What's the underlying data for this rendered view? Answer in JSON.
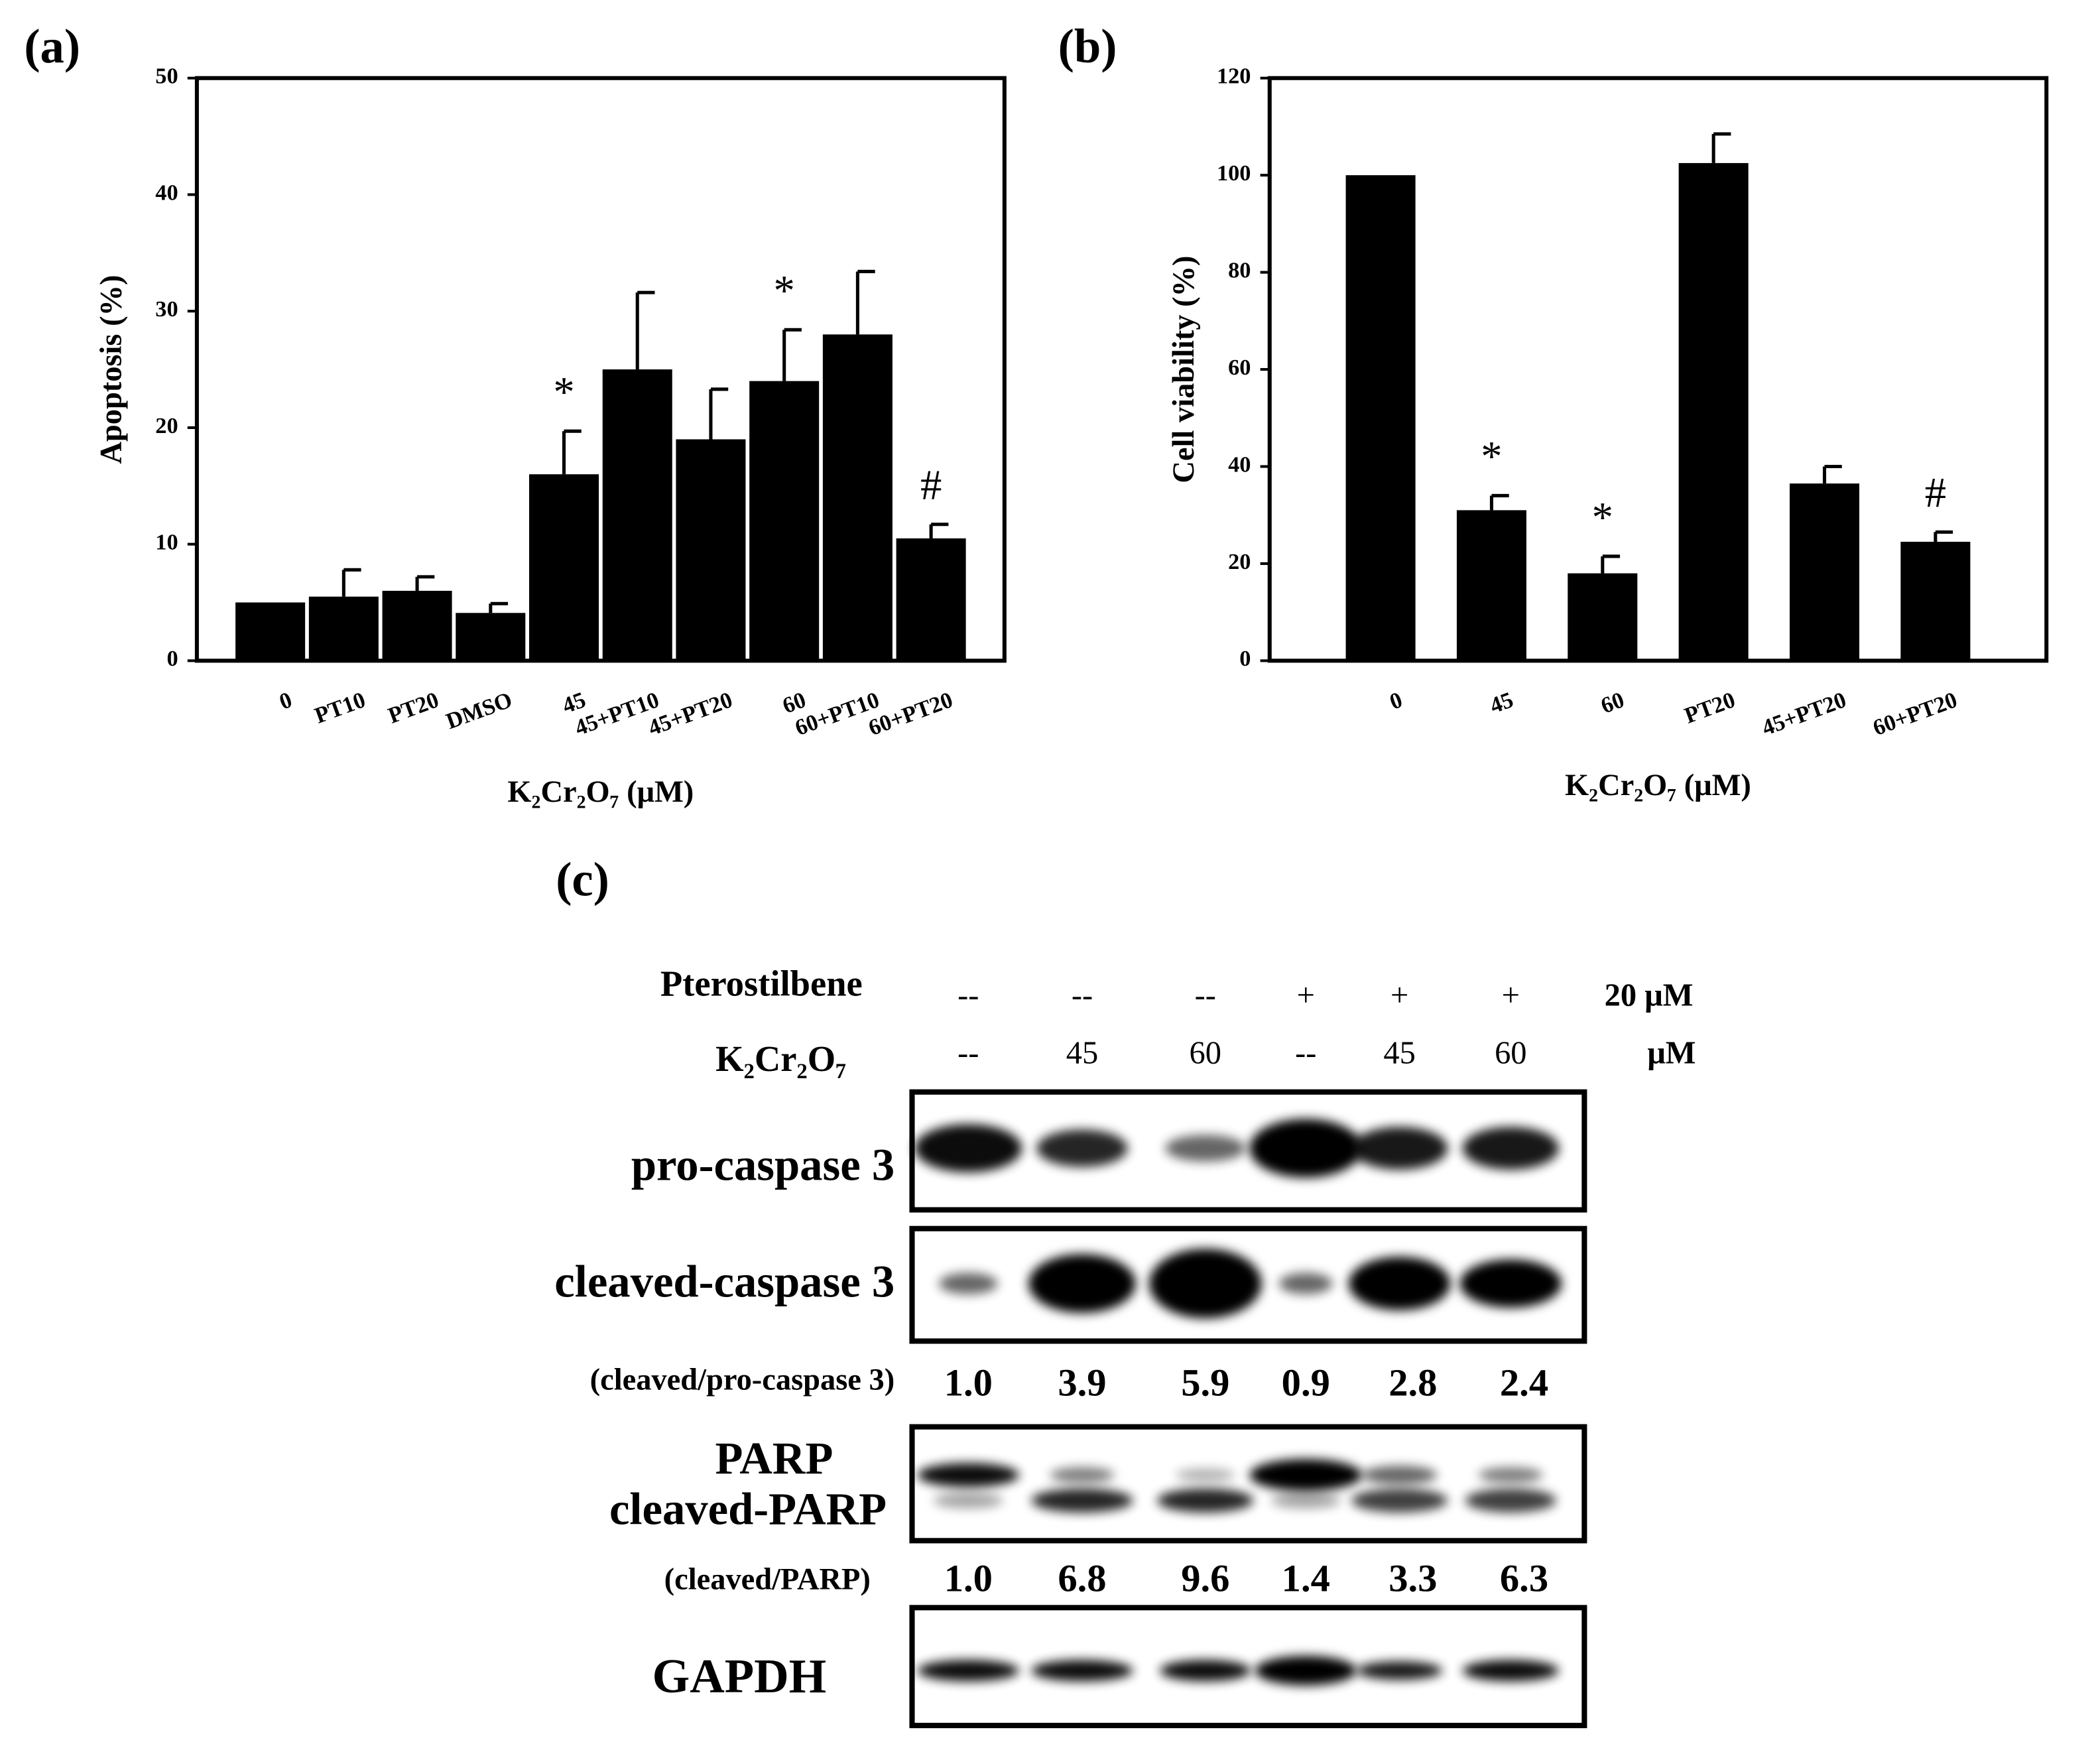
{
  "chart_data": [
    {
      "type": "bar",
      "panel": "(a)",
      "ylabel": "Apoptosis (%)",
      "xlabel": "K₂Cr₂O₇ (μM)",
      "categories": [
        "0",
        "PT10",
        "PT20",
        "DMSO",
        "45",
        "45+PT10",
        "45+PT20",
        "60",
        "60+PT10",
        "60+PT20"
      ],
      "values": [
        5.0,
        5.5,
        6.0,
        4.1,
        16.0,
        25.0,
        19.0,
        24.0,
        28.0,
        10.5
      ],
      "errors": [
        null,
        2.3,
        1.2,
        0.8,
        3.7,
        6.6,
        4.3,
        4.4,
        5.4,
        1.2
      ],
      "significance": [
        null,
        null,
        null,
        null,
        "*",
        null,
        null,
        "*",
        null,
        "#"
      ],
      "color": "#000000",
      "ylim": [
        0,
        50
      ],
      "yticks": [
        0,
        10,
        20,
        30,
        40,
        50
      ]
    },
    {
      "type": "bar",
      "panel": "(b)",
      "ylabel": "Cell viability (%)",
      "xlabel": "K₂Cr₂O₇ (μM)",
      "categories": [
        "0",
        "45",
        "60",
        "PT20",
        "45+PT20",
        "60+PT20"
      ],
      "values": [
        100,
        31,
        18,
        102.5,
        36.5,
        24.5
      ],
      "errors": [
        null,
        3,
        3.5,
        6,
        3.5,
        2
      ],
      "significance": [
        null,
        "*",
        "*",
        null,
        null,
        "#"
      ],
      "color": "#000000",
      "ylim": [
        0,
        120
      ],
      "yticks": [
        0,
        20,
        40,
        60,
        80,
        100,
        120
      ]
    }
  ],
  "blot": {
    "panel": "(c)",
    "treatments": [
      {
        "label": "Pterostilbene",
        "lanes": [
          "--",
          "--",
          "--",
          "+",
          "+",
          "+"
        ],
        "unit": "20 μM"
      },
      {
        "label": "K₂Cr₂O₇",
        "lanes": [
          "--",
          "45",
          "60",
          "--",
          "45",
          "60"
        ],
        "unit": "μM"
      }
    ],
    "bands": {
      "pro_caspase": "pro-caspase 3",
      "cleaved_caspase": "cleaved-caspase 3",
      "parp": "PARP",
      "cleaved_parp": "cleaved-PARP",
      "gapdh": "GAPDH"
    },
    "ratios": [
      {
        "label": "(cleaved/pro-caspase 3)",
        "values": [
          "1.0",
          "3.9",
          "5.9",
          "0.9",
          "2.8",
          "2.4"
        ]
      },
      {
        "label": "(cleaved/PARP)",
        "values": [
          "1.0",
          "6.8",
          "9.6",
          "1.4",
          "3.3",
          "6.3"
        ]
      }
    ]
  }
}
